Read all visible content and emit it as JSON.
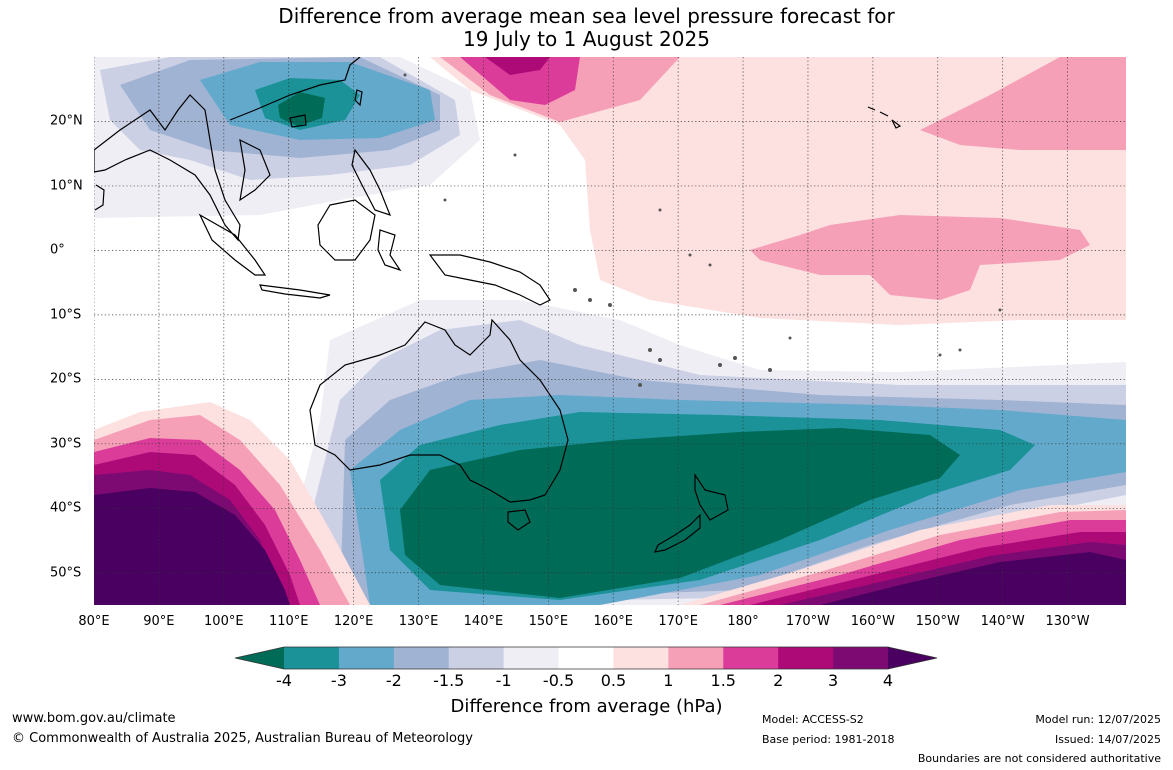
{
  "title": {
    "line1": "Difference from average mean sea level pressure forecast for",
    "line2": "19 July to 1 August 2025"
  },
  "map": {
    "longitude_labels": [
      "80°E",
      "90°E",
      "100°E",
      "110°E",
      "120°E",
      "130°E",
      "140°E",
      "150°E",
      "160°E",
      "170°E",
      "180°",
      "170°W",
      "160°W",
      "150°W",
      "140°W",
      "130°W"
    ],
    "latitude_labels": [
      "20°N",
      "10°N",
      "0°",
      "10°S",
      "20°S",
      "30°S",
      "40°S",
      "50°S"
    ],
    "extent": {
      "lon_min_east": 80,
      "lon_max_east": 239,
      "lat_min": -55,
      "lat_max": 30
    },
    "gridlines": true,
    "features": [
      {
        "name": "negative-anomaly-australia-nz",
        "min_value": -4,
        "centre_lon": 160,
        "centre_lat": -38
      },
      {
        "name": "negative-anomaly-south-china-sea",
        "min_value": -4,
        "centre_lon": 113,
        "centre_lat": 21
      },
      {
        "name": "positive-anomaly-southwest-indian-ocean",
        "max_value": 4,
        "centre_lon": 88,
        "centre_lat": -48
      },
      {
        "name": "positive-anomaly-southeast-pacific",
        "max_value": 4,
        "centre_lon": 212,
        "centre_lat": -52
      },
      {
        "name": "positive-anomaly-north-pacific",
        "max_value": 2,
        "centre_lon": 147,
        "centre_lat": 29
      },
      {
        "name": "positive-anomaly-equatorial-pacific",
        "max_value": 1.5,
        "centre_lon": 200,
        "centre_lat": 0
      }
    ]
  },
  "colorbar": {
    "labels": [
      "-4",
      "-3",
      "-2",
      "-1.5",
      "-1",
      "-0.5",
      "0.5",
      "1",
      "1.5",
      "2",
      "3",
      "4"
    ],
    "colors": [
      "#006b57",
      "#1a9298",
      "#62a9cc",
      "#a1b3d3",
      "#ccd0e4",
      "#f0eef5",
      "#ffffff",
      "#fde0e0",
      "#f6a0b8",
      "#dc3c99",
      "#ad0a78",
      "#7d0a73",
      "#4a0060"
    ],
    "title": "Difference from average (hPa)"
  },
  "footer": {
    "url": "www.bom.gov.au/climate",
    "copyright": "© Commonwealth of Australia 2025, Australian Bureau of Meteorology",
    "model": "Model: ACCESS-S2",
    "base_period": "Base period: 1981-2018",
    "model_run": "Model run: 12/07/2025",
    "issued": "Issued: 14/07/2025",
    "boundaries": "Boundaries are not considered authoritative"
  }
}
